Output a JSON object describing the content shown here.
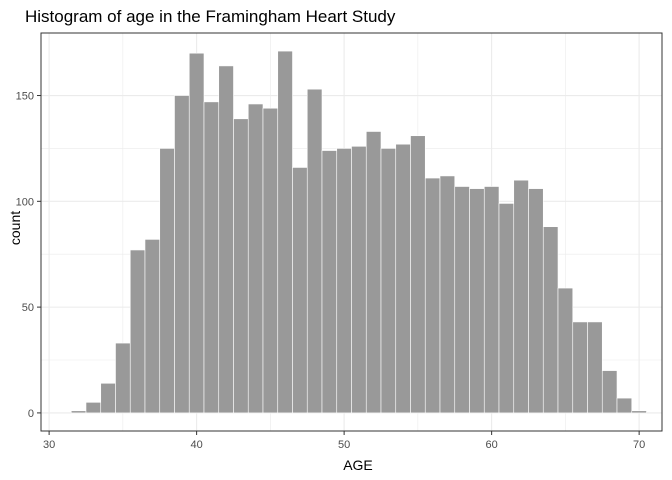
{
  "chart_data": {
    "type": "bar",
    "title": "Histogram of age in the Framingham Heart Study",
    "xlabel": "AGE",
    "ylabel": "count",
    "bin_width": 1,
    "bin_centers": [
      32,
      33,
      34,
      35,
      36,
      37,
      38,
      39,
      40,
      41,
      42,
      43,
      44,
      45,
      46,
      47,
      48,
      49,
      50,
      51,
      52,
      53,
      54,
      55,
      56,
      57,
      58,
      59,
      60,
      61,
      62,
      63,
      64,
      65,
      66,
      67,
      68,
      69,
      70
    ],
    "values": [
      1,
      5,
      14,
      33,
      77,
      82,
      125,
      150,
      170,
      147,
      164,
      139,
      146,
      144,
      171,
      116,
      153,
      124,
      125,
      126,
      133,
      125,
      127,
      131,
      111,
      112,
      107,
      106,
      107,
      99,
      110,
      106,
      88,
      59,
      43,
      43,
      20,
      7,
      1
    ],
    "xlim": [
      29.45,
      71.55
    ],
    "ylim": [
      -8.55,
      179.55
    ],
    "xticks": [
      30,
      40,
      50,
      60,
      70
    ],
    "yticks": [
      0,
      50,
      100,
      150
    ],
    "grid": true,
    "colors": {
      "bar_fill": "#999999",
      "bar_stroke": "#ffffff",
      "grid": "#ebebeb",
      "panel_border": "#333333"
    }
  }
}
